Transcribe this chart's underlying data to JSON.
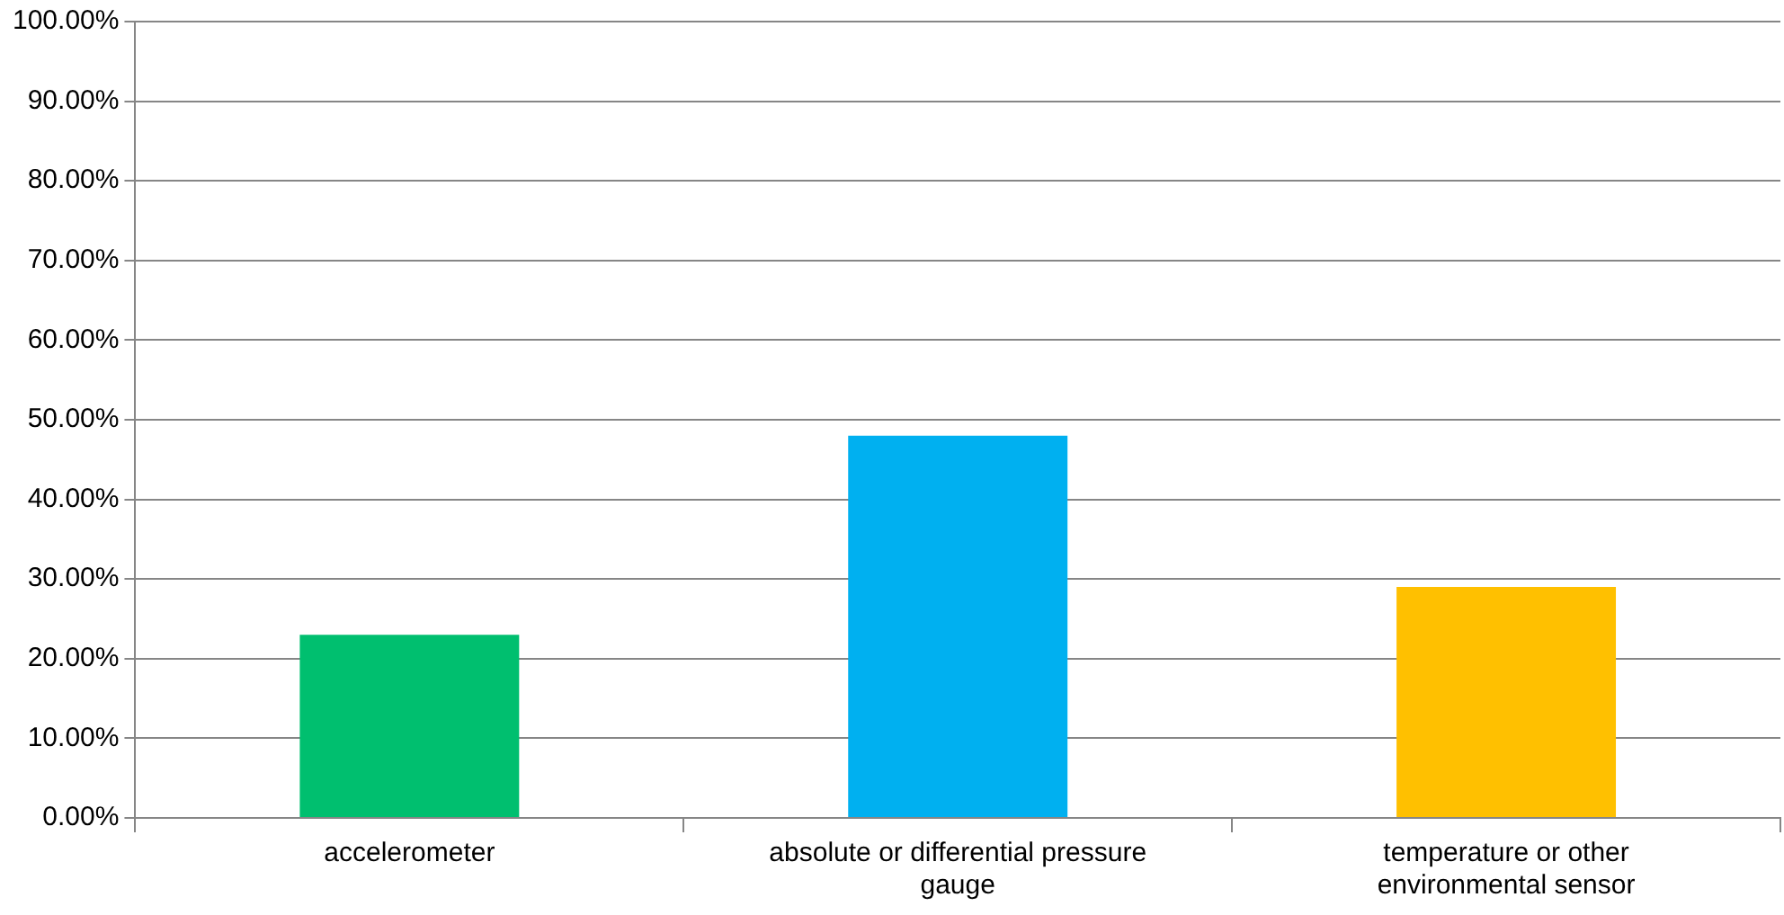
{
  "chart_data": {
    "type": "bar",
    "categories": [
      "accelerometer",
      "absolute or differential pressure gauge",
      "temperature or other environmental sensor"
    ],
    "values": [
      23,
      48,
      29
    ],
    "colors": [
      "#00bf6f",
      "#00b0f0",
      "#ffc000"
    ],
    "ylim": [
      0,
      100
    ],
    "yticks": [
      {
        "value": 0,
        "label": "0.00%"
      },
      {
        "value": 10,
        "label": "10.00%"
      },
      {
        "value": 20,
        "label": "20.00%"
      },
      {
        "value": 30,
        "label": "30.00%"
      },
      {
        "value": 40,
        "label": "40.00%"
      },
      {
        "value": 50,
        "label": "50.00%"
      },
      {
        "value": 60,
        "label": "60.00%"
      },
      {
        "value": 70,
        "label": "70.00%"
      },
      {
        "value": 80,
        "label": "80.00%"
      },
      {
        "value": 90,
        "label": "90.00%"
      },
      {
        "value": 100,
        "label": "100.00%"
      }
    ],
    "grid": "y",
    "legend": false
  }
}
